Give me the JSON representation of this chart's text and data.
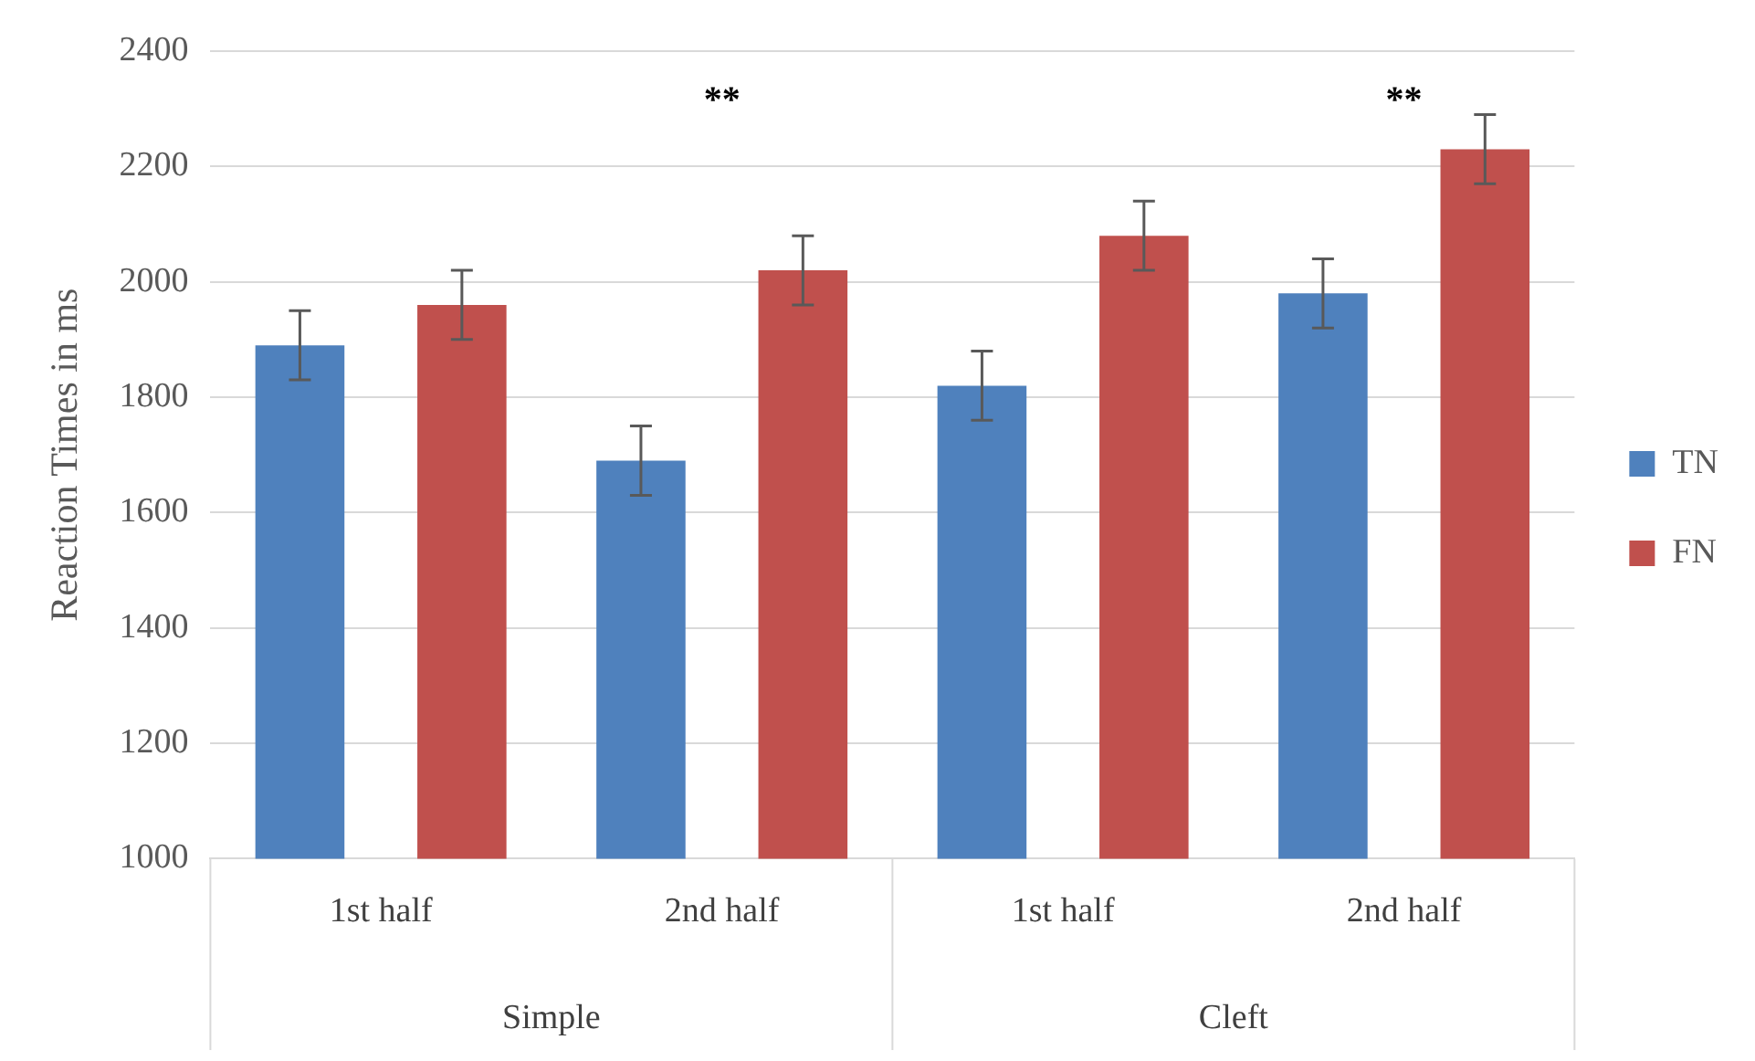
{
  "chart_data": {
    "type": "bar",
    "ylabel": "Reaction Times in ms",
    "categories": [
      "1st half",
      "2nd half",
      "1st half",
      "2nd half"
    ],
    "series": [
      {
        "name": "TN",
        "color": "#4f81bd",
        "values": [
          1890,
          1690,
          1820,
          1980
        ],
        "errors": [
          60,
          60,
          60,
          60
        ]
      },
      {
        "name": "FN",
        "color": "#c0504d",
        "values": [
          1960,
          2020,
          2080,
          2230
        ],
        "errors": [
          60,
          60,
          60,
          60
        ]
      }
    ],
    "ylim": [
      1000,
      2400
    ],
    "yticks": [
      1000,
      1200,
      1400,
      1600,
      1800,
      2000,
      2200,
      2400
    ],
    "grid": "y",
    "legend": "right",
    "annotations": [
      "Simple",
      "Cleft",
      "**",
      "**"
    ]
  }
}
